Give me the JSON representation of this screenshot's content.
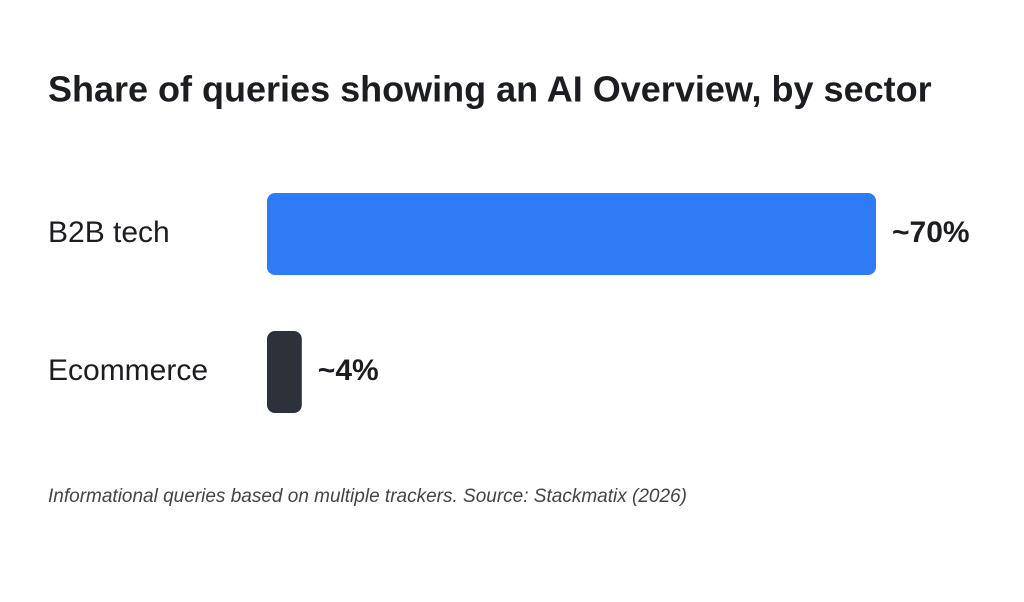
{
  "chart_data": {
    "type": "bar",
    "orientation": "horizontal",
    "title": "Share of queries showing an AI Overview, by sector",
    "categories": [
      "B2B tech",
      "Ecommerce"
    ],
    "values": [
      70,
      4
    ],
    "value_labels": [
      "~70%",
      "~4%"
    ],
    "colors": [
      "#2f7bf5",
      "#2d3139"
    ],
    "note": "Informational queries based on multiple trackers. Source: Stackmatix (2026)"
  }
}
